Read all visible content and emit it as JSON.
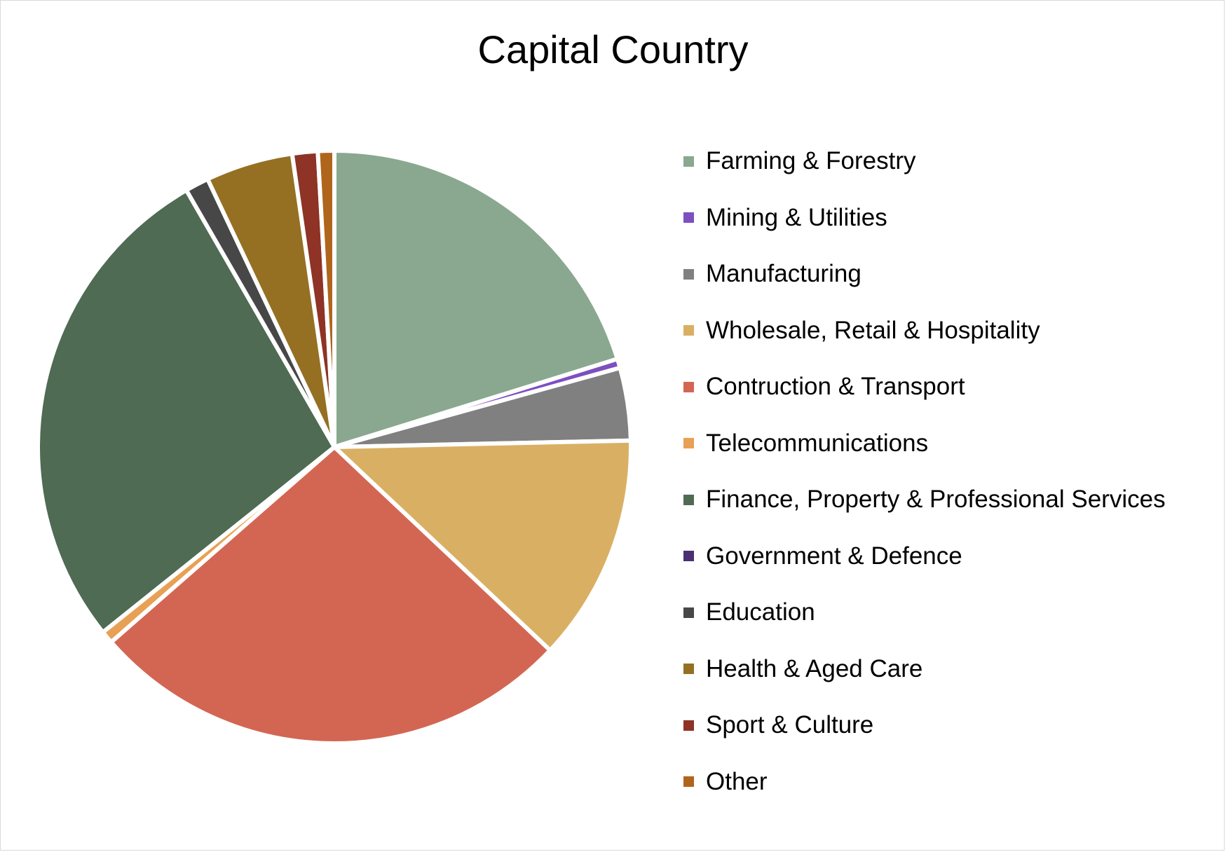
{
  "chart_data": {
    "type": "pie",
    "title": "Capital Country",
    "legend_position": "right",
    "categories": [
      "Farming & Forestry",
      "Mining & Utilities",
      "Manufacturing",
      "Wholesale, Retail & Hospitality",
      "Contruction & Transport",
      "Telecommunications",
      "Finance, Property & Professional Services",
      "Government & Defence",
      "Education",
      "Health & Aged Care",
      "Sport & Culture",
      "Other"
    ],
    "values": [
      20.4,
      0.5,
      4.0,
      12.5,
      26.8,
      0.7,
      27.7,
      0.0,
      1.3,
      4.8,
      1.4,
      0.9
    ],
    "colors": [
      "#8aa88f",
      "#7d4fbf",
      "#808080",
      "#d9b063",
      "#d36652",
      "#e8a054",
      "#4f6b53",
      "#4b2f73",
      "#474747",
      "#957023",
      "#8e3325",
      "#b0651c"
    ]
  }
}
